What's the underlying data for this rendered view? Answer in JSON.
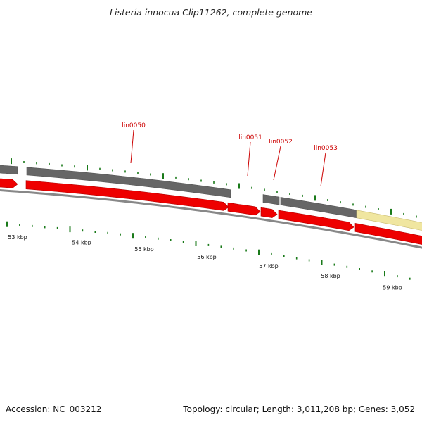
{
  "title": "Listeria innocua Clip11262, complete genome",
  "footer": {
    "accession": "Accession: NC_003212",
    "summary": "Topology: circular; Length: 3,011,208 bp; Genes: 3,052"
  },
  "colors": {
    "forward_gene": "#ee0000",
    "reverse_gene": "#666666",
    "other_feature": "#f0e6a0",
    "tick": "#1a7a1a",
    "backbone": "#888888",
    "label": "#cc0000"
  },
  "gene_labels": [
    "lin0050",
    "lin0051",
    "lin0052",
    "lin0053"
  ],
  "scale_labels": [
    "53 kbp",
    "54 kbp",
    "55 kbp",
    "56 kbp",
    "57 kbp",
    "58 kbp",
    "59 kbp"
  ]
}
